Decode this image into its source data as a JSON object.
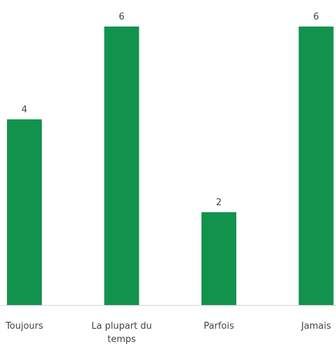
{
  "chart_data": {
    "type": "bar",
    "categories": [
      "Toujours",
      "La plupart du temps",
      "Parfois",
      "Jamais"
    ],
    "values": [
      4,
      6,
      2,
      6
    ],
    "color": "#12934d"
  }
}
